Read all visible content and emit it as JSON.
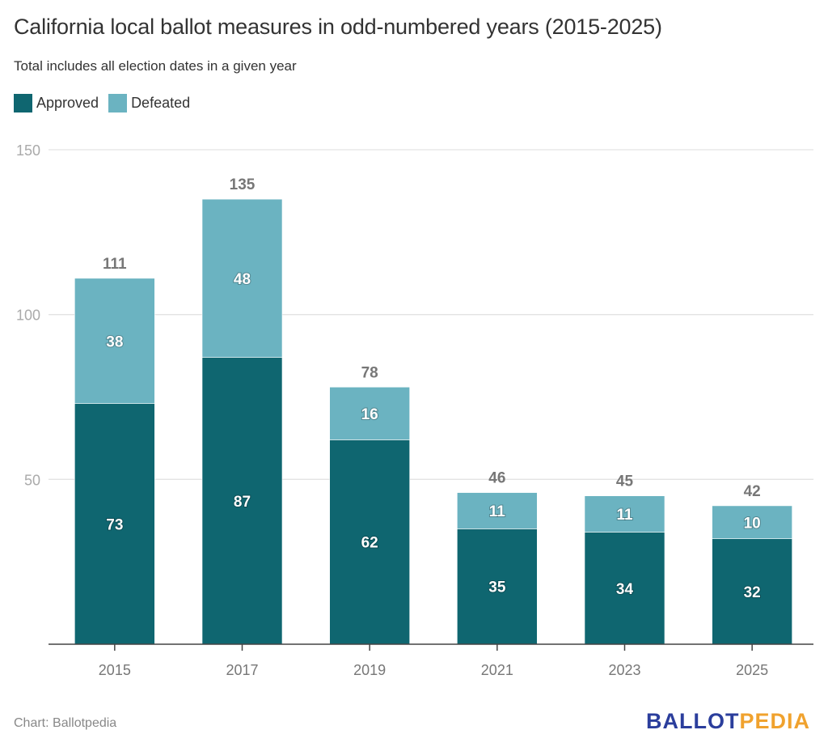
{
  "chart_data": {
    "type": "bar",
    "stacked": true,
    "title": "California local ballot measures in odd-numbered years (2015-2025)",
    "subtitle": "Total includes all election dates in a given year",
    "xlabel": "",
    "ylabel": "",
    "ylim": [
      0,
      150
    ],
    "yticks": [
      50,
      100,
      150
    ],
    "grid": true,
    "legend_position": "top-left",
    "categories": [
      "2015",
      "2017",
      "2019",
      "2021",
      "2023",
      "2025"
    ],
    "series": [
      {
        "name": "Approved",
        "color": "#0f6670",
        "values": [
          73,
          87,
          62,
          35,
          34,
          32
        ]
      },
      {
        "name": "Defeated",
        "color": "#6bb3c1",
        "values": [
          38,
          48,
          16,
          11,
          11,
          10
        ]
      }
    ],
    "totals": [
      111,
      135,
      78,
      46,
      45,
      42
    ]
  },
  "footer": {
    "source": "Chart: Ballotpedia",
    "logo_part1": "BALLOT",
    "logo_part2": "PEDIA"
  },
  "colors": {
    "approved": "#0f6670",
    "defeated": "#6bb3c1",
    "logo_blue": "#2b3e9c",
    "logo_orange": "#f0a22e"
  }
}
